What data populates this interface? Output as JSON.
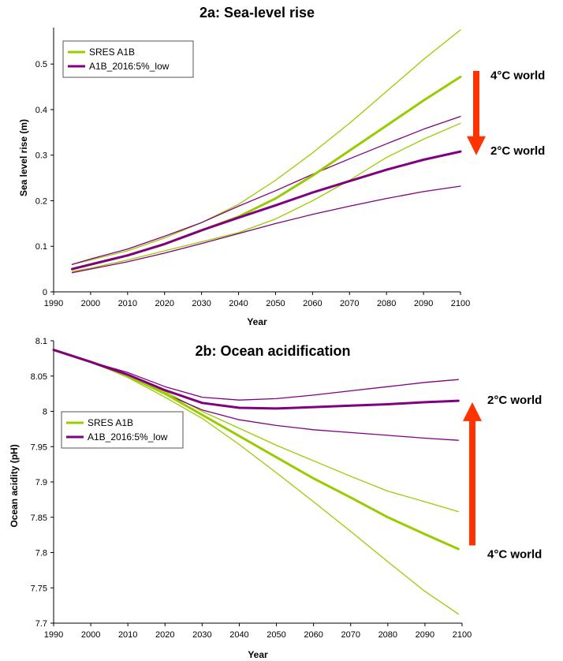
{
  "colors": {
    "sres": "#99cc00",
    "low": "#800080",
    "arrow": "#ff3300"
  },
  "chart_data": [
    {
      "type": "line",
      "title": "2a: Sea-level rise",
      "xlabel": "Year",
      "ylabel": "Sea level rise (m)",
      "xlim": [
        1990,
        2100
      ],
      "ylim": [
        0,
        0.58
      ],
      "xticks": [
        1990,
        2000,
        2010,
        2020,
        2030,
        2040,
        2050,
        2060,
        2070,
        2080,
        2090,
        2100
      ],
      "yticks": [
        0,
        0.1,
        0.2,
        0.3,
        0.4,
        0.5
      ],
      "ytick_labels": [
        "0",
        "0.1",
        "0.2",
        "0.3",
        "0.4",
        "0.5"
      ],
      "grid": false,
      "legend": "top-left",
      "legend_entries": [
        "SRES A1B",
        "A1B_2016:5%_low"
      ],
      "x": [
        1995,
        2000,
        2010,
        2020,
        2030,
        2040,
        2050,
        2060,
        2070,
        2080,
        2090,
        2100
      ],
      "series": [
        {
          "name": "SRES A1B",
          "group": "sres",
          "role": "central",
          "values": [
            0.05,
            0.06,
            0.08,
            0.105,
            0.135,
            0.165,
            0.205,
            0.255,
            0.31,
            0.365,
            0.42,
            0.472
          ]
        },
        {
          "name": "SRES A1B",
          "group": "sres",
          "role": "upper",
          "values": [
            0.06,
            0.07,
            0.09,
            0.118,
            0.152,
            0.192,
            0.245,
            0.305,
            0.37,
            0.44,
            0.51,
            0.575
          ]
        },
        {
          "name": "SRES A1B",
          "group": "sres",
          "role": "lower",
          "values": [
            0.045,
            0.052,
            0.07,
            0.09,
            0.11,
            0.13,
            0.16,
            0.2,
            0.245,
            0.295,
            0.335,
            0.37
          ]
        },
        {
          "name": "A1B_2016:5%_low",
          "group": "low",
          "role": "central",
          "values": [
            0.05,
            0.06,
            0.08,
            0.105,
            0.135,
            0.163,
            0.19,
            0.218,
            0.243,
            0.268,
            0.29,
            0.308
          ]
        },
        {
          "name": "A1B_2016:5%_low",
          "group": "low",
          "role": "upper",
          "values": [
            0.06,
            0.072,
            0.094,
            0.122,
            0.152,
            0.188,
            0.222,
            0.258,
            0.292,
            0.325,
            0.357,
            0.385
          ]
        },
        {
          "name": "A1B_2016:5%_low",
          "group": "low",
          "role": "lower",
          "values": [
            0.042,
            0.05,
            0.066,
            0.085,
            0.106,
            0.128,
            0.15,
            0.17,
            0.188,
            0.205,
            0.22,
            0.232
          ]
        }
      ],
      "annotations": [
        {
          "text": "4°C world",
          "y": 0.475
        },
        {
          "text": "2°C world",
          "y": 0.31
        }
      ],
      "arrow": {
        "direction": "down",
        "from": 0.485,
        "to": 0.3
      }
    },
    {
      "type": "line",
      "title": "2b: Ocean acidification",
      "xlabel": "Year",
      "ylabel": "Ocean acidity (pH)",
      "xlim": [
        1990,
        2100
      ],
      "ylim": [
        7.7,
        8.1
      ],
      "xticks": [
        1990,
        2000,
        2010,
        2020,
        2030,
        2040,
        2050,
        2060,
        2070,
        2080,
        2090,
        2100
      ],
      "yticks": [
        7.7,
        7.75,
        7.8,
        7.85,
        7.9,
        7.95,
        8.0,
        8.05,
        8.1
      ],
      "ytick_labels": [
        "7.7",
        "7.75",
        "7.8",
        "7.85",
        "7.9",
        "7.95",
        "8",
        "8.05",
        "8.1"
      ],
      "grid": false,
      "legend": "center-left",
      "legend_entries": [
        "SRES A1B",
        "A1B_2016:5%_low"
      ],
      "x": [
        1990,
        2000,
        2010,
        2020,
        2030,
        2040,
        2050,
        2060,
        2070,
        2080,
        2090,
        2099
      ],
      "series": [
        {
          "name": "SRES A1B",
          "group": "sres",
          "role": "central",
          "values": [
            8.087,
            8.07,
            8.05,
            8.025,
            7.995,
            7.965,
            7.935,
            7.905,
            7.878,
            7.85,
            7.826,
            7.805
          ]
        },
        {
          "name": "SRES A1B",
          "group": "sres",
          "role": "upper",
          "values": [
            8.087,
            8.07,
            8.05,
            8.028,
            8.0,
            7.976,
            7.952,
            7.93,
            7.908,
            7.887,
            7.872,
            7.858
          ]
        },
        {
          "name": "SRES A1B",
          "group": "sres",
          "role": "lower",
          "values": [
            8.087,
            8.07,
            8.048,
            8.02,
            7.99,
            7.953,
            7.913,
            7.872,
            7.83,
            7.787,
            7.745,
            7.713
          ]
        },
        {
          "name": "A1B_2016:5%_low",
          "group": "low",
          "role": "central",
          "values": [
            8.087,
            8.07,
            8.052,
            8.03,
            8.012,
            8.005,
            8.004,
            8.006,
            8.008,
            8.01,
            8.013,
            8.015
          ]
        },
        {
          "name": "A1B_2016:5%_low",
          "group": "low",
          "role": "upper",
          "values": [
            8.087,
            8.07,
            8.055,
            8.035,
            8.02,
            8.016,
            8.018,
            8.023,
            8.029,
            8.035,
            8.041,
            8.045
          ]
        },
        {
          "name": "A1B_2016:5%_low",
          "group": "low",
          "role": "lower",
          "values": [
            8.087,
            8.07,
            8.05,
            8.025,
            8.002,
            7.988,
            7.98,
            7.974,
            7.97,
            7.966,
            7.962,
            7.959
          ]
        }
      ],
      "annotations": [
        {
          "text": "2°C world",
          "y": 8.016
        },
        {
          "text": "4°C world",
          "y": 7.798
        }
      ],
      "arrow": {
        "direction": "up",
        "from": 7.81,
        "to": 8.013
      }
    }
  ]
}
